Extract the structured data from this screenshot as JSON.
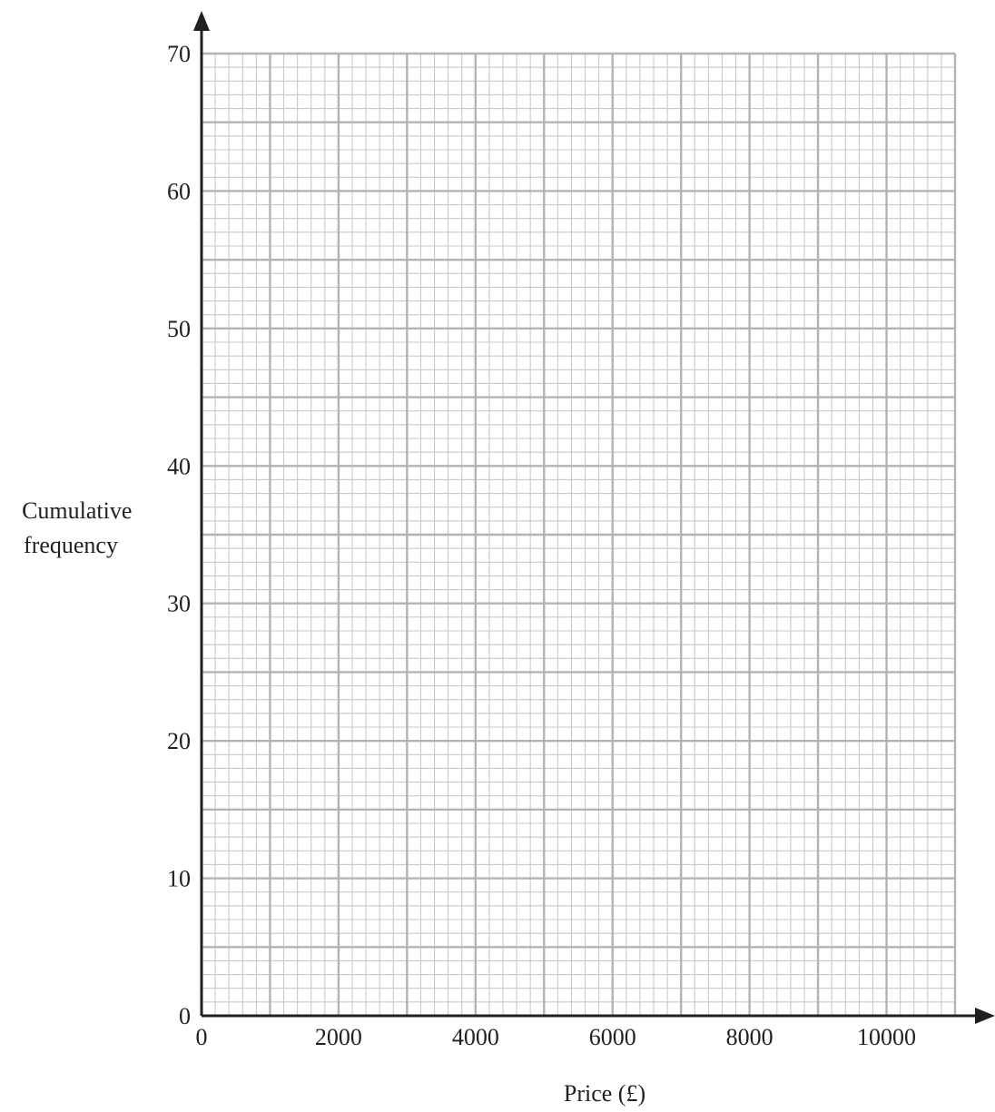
{
  "chart_data": {
    "type": "line",
    "title": "",
    "xlabel": "Price (£)",
    "ylabel_lines": [
      "Cumulative",
      "frequency"
    ],
    "xlim": [
      0,
      11000
    ],
    "ylim": [
      0,
      70
    ],
    "x_ticks": [
      0,
      2000,
      4000,
      6000,
      8000,
      10000
    ],
    "x_tick_labels": [
      "0",
      "2000",
      "4000",
      "6000",
      "8000",
      "10000"
    ],
    "y_ticks": [
      0,
      10,
      20,
      30,
      40,
      50,
      60,
      70
    ],
    "y_tick_labels": [
      "0",
      "10",
      "20",
      "30",
      "40",
      "50",
      "60",
      "70"
    ],
    "grid": true,
    "grid_major_x": 1000,
    "grid_minor_x": 200,
    "grid_major_y": 5,
    "grid_minor_y": 1,
    "series": [],
    "colors": {
      "grid_major": "#b3b3b3",
      "grid_minor": "#c9c9c9",
      "axis": "#231f20"
    }
  }
}
